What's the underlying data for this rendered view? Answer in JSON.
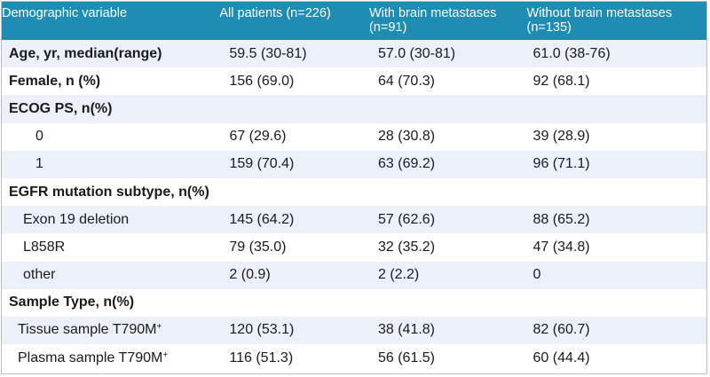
{
  "header": {
    "col0": "Demographic variable",
    "col1": "All patients (n=226)",
    "col2_line1": "With brain metastases",
    "col2_line2": "(n=91)",
    "col3_line1": "Without brain metastases",
    "col3_line2": "(n=135)"
  },
  "rows": [
    {
      "label": "Age, yr, median(range)",
      "all": "59.5 (30-81)",
      "with": "57.0 (30-81)",
      "without": "61.0 (38-76)"
    },
    {
      "label": "Female, n (%)",
      "all": "156 (69.0)",
      "with": "64 (70.3)",
      "without": "92 (68.1)"
    },
    {
      "label": "ECOG PS, n(%)",
      "all": "",
      "with": "",
      "without": ""
    },
    {
      "label": "0",
      "all": "67 (29.6)",
      "with": "28 (30.8)",
      "without": "39 (28.9)"
    },
    {
      "label": "1",
      "all": "159 (70.4)",
      "with": "63 (69.2)",
      "without": "96 (71.1)"
    },
    {
      "label": "EGFR mutation subtype, n(%)",
      "all": "",
      "with": "",
      "without": ""
    },
    {
      "label": "Exon 19 deletion",
      "all": "145 (64.2)",
      "with": "57 (62.6)",
      "without": "88 (65.2)"
    },
    {
      "label": "L858R",
      "all": "79 (35.0)",
      "with": "32 (35.2)",
      "without": "47 (34.8)"
    },
    {
      "label": "other",
      "all": "2 (0.9)",
      "with": "2 (2.2)",
      "without": "0"
    },
    {
      "label": "Sample Type, n(%)",
      "all": "",
      "with": "",
      "without": ""
    },
    {
      "label": "Tissue sample T790M",
      "label_sup": "+",
      "all": "120 (53.1)",
      "with": "38 (41.8)",
      "without": "82 (60.7)"
    },
    {
      "label": "Plasma sample T790M",
      "label_sup": "+",
      "all": "116 (51.3)",
      "with": "56 (61.5)",
      "without": "60 (44.4)"
    }
  ]
}
